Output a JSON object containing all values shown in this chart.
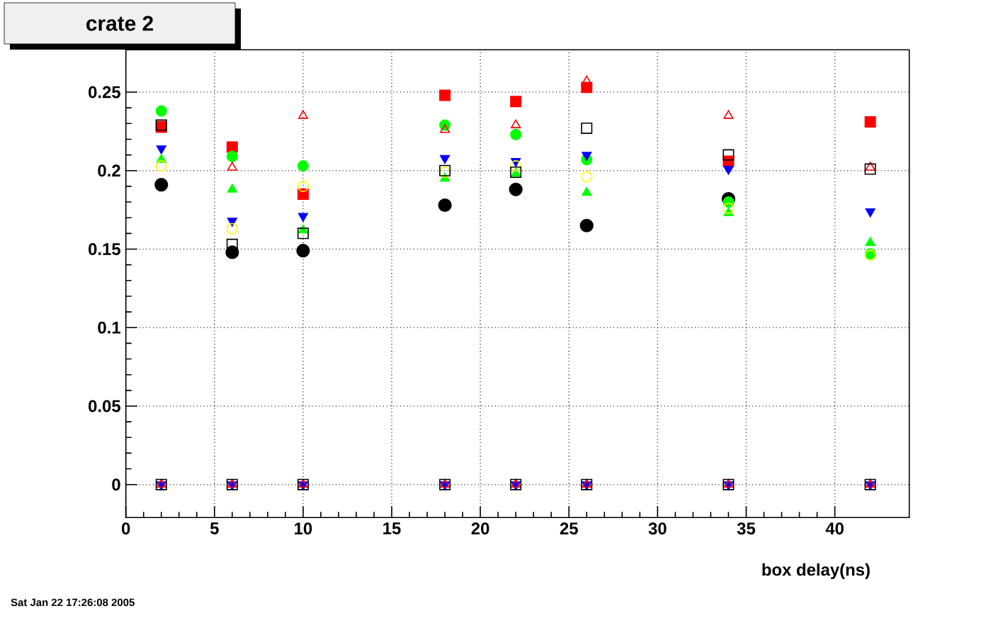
{
  "chart_data": {
    "type": "scatter",
    "title": "crate 2",
    "xlabel": "box delay(ns)",
    "annotations": [
      "Sat Jan 22 17:26:08 2005"
    ],
    "x": [
      2,
      6,
      10,
      18,
      22,
      26,
      34,
      42,
      2,
      6,
      10,
      18,
      22,
      26,
      34,
      42
    ],
    "series": [
      {
        "color": "#000000",
        "marker": "circle",
        "values": [
          0.191,
          0.148,
          0.149,
          0.178,
          0.188,
          0.165,
          0.182,
          null,
          null,
          null,
          null,
          null,
          null,
          null,
          null,
          null
        ]
      },
      {
        "color": "#ff0000",
        "marker": "square",
        "values": [
          0.228,
          0.215,
          0.185,
          0.248,
          0.244,
          0.253,
          0.206,
          0.231,
          null,
          null,
          null,
          null,
          null,
          null,
          null,
          null
        ]
      },
      {
        "color": "#00ff00",
        "marker": "circle",
        "values": [
          0.238,
          0.209,
          0.203,
          0.229,
          0.223,
          0.207,
          0.18,
          0.147,
          null,
          null,
          null,
          null,
          null,
          null,
          null,
          null
        ]
      },
      {
        "color": "#0000ff",
        "marker": "triangle_down",
        "values": [
          0.214,
          0.168,
          0.171,
          0.208,
          0.206,
          0.21,
          0.201,
          0.174,
          0,
          0,
          0,
          0,
          0,
          0,
          0,
          0
        ]
      },
      {
        "color": "#00ff00",
        "marker": "triangle",
        "values": [
          0.207,
          0.188,
          0.162,
          0.195,
          0.198,
          0.186,
          0.173,
          0.154,
          null,
          null,
          null,
          null,
          null,
          null,
          null,
          null
        ]
      },
      {
        "color": "#ffff00",
        "marker": "circle_open",
        "values": [
          0.203,
          0.163,
          0.19,
          0.199,
          0.203,
          0.196,
          0.176,
          0.146,
          null,
          null,
          null,
          null,
          null,
          null,
          null,
          null
        ]
      },
      {
        "color": "#ff0000",
        "marker": "triangle_open",
        "values": [
          0.226,
          0.202,
          0.235,
          0.226,
          0.229,
          0.257,
          0.235,
          0.202,
          0,
          0,
          0,
          0,
          0,
          0,
          0,
          0
        ]
      },
      {
        "color": "#000000",
        "marker": "square_open",
        "values": [
          0.229,
          0.153,
          0.16,
          0.2,
          0.199,
          0.227,
          0.21,
          0.201,
          0,
          0,
          0,
          0,
          0,
          0,
          0,
          0
        ]
      }
    ],
    "xlim": [
      0,
      44.2
    ],
    "ylim": [
      -0.021,
      0.277
    ],
    "xticks": [
      0,
      5,
      10,
      15,
      20,
      25,
      30,
      35,
      40
    ],
    "yticks": [
      0,
      0.05,
      0.1,
      0.15,
      0.2,
      0.25
    ],
    "grid": true
  }
}
